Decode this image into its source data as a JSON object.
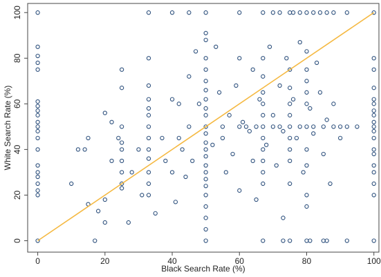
{
  "chart_data": {
    "type": "scatter",
    "xlabel": "Black Search Rate (%)",
    "ylabel": "White Search Rate (%)",
    "xlim": [
      -3,
      101.5
    ],
    "ylim": [
      -5,
      104
    ],
    "xticks": [
      0,
      20,
      40,
      60,
      80,
      100
    ],
    "yticks": [
      0,
      20,
      40,
      60,
      80,
      100
    ],
    "color": "#2c4f7c",
    "reference_line": {
      "x": [
        0,
        100
      ],
      "y": [
        0,
        100
      ],
      "color": "#f5b942"
    },
    "x": [
      0,
      0,
      0,
      0,
      0,
      0,
      0,
      0,
      0,
      0,
      0,
      0,
      0,
      0,
      0,
      0,
      0,
      0,
      0,
      0,
      0,
      100,
      100,
      100,
      100,
      100,
      100,
      100,
      100,
      100,
      100,
      100,
      100,
      100,
      100,
      100,
      100,
      100,
      100,
      100,
      33,
      40,
      45,
      50,
      60,
      67,
      70,
      72,
      75,
      76,
      78,
      80,
      82,
      84,
      86,
      88,
      92,
      17,
      50,
      67,
      73,
      75,
      80,
      81,
      85,
      86,
      92,
      50,
      50,
      50,
      50,
      50,
      50,
      50,
      50,
      50,
      50,
      50,
      50,
      50,
      50,
      50,
      50,
      50,
      50,
      50,
      50,
      50,
      50,
      33,
      33,
      33,
      33,
      33,
      33,
      33,
      33,
      33,
      33,
      33,
      33,
      67,
      67,
      67,
      67,
      67,
      67,
      67,
      67,
      67,
      67,
      67,
      25,
      25,
      25,
      25,
      25,
      25,
      25,
      25,
      25,
      75,
      75,
      75,
      75,
      75,
      75,
      75,
      75,
      75,
      80,
      80,
      80,
      80,
      80,
      80,
      80,
      80,
      80,
      80,
      55,
      60,
      62,
      65,
      70,
      72,
      78,
      82,
      85,
      88,
      90,
      10,
      12,
      14,
      15,
      15,
      18,
      20,
      20,
      20,
      22,
      22,
      24,
      27,
      28,
      30,
      31,
      35,
      37,
      38,
      40,
      40,
      41,
      42,
      42,
      43,
      44,
      45,
      45,
      46,
      47,
      48,
      52,
      53,
      54,
      55,
      56,
      57,
      58,
      59,
      60,
      60,
      61,
      63,
      64,
      64,
      65,
      66,
      68,
      69,
      70,
      71,
      72,
      73,
      73,
      74,
      76,
      77,
      78,
      79,
      81,
      82,
      83,
      84,
      85,
      86,
      87,
      88,
      90,
      92,
      95
    ],
    "y": [
      100,
      85,
      81,
      78,
      75,
      61,
      59,
      57,
      55,
      52,
      50,
      48,
      45,
      40,
      33,
      30,
      28,
      25,
      22,
      20,
      0,
      100,
      80,
      75,
      67,
      62,
      60,
      57,
      55,
      52,
      50,
      48,
      45,
      40,
      38,
      33,
      30,
      25,
      20,
      0,
      100,
      100,
      100,
      100,
      100,
      100,
      100,
      100,
      100,
      100,
      100,
      100,
      100,
      100,
      100,
      100,
      100,
      0,
      0,
      0,
      0,
      0,
      0,
      0,
      0,
      0,
      0,
      91,
      88,
      80,
      75,
      70,
      66,
      62,
      58,
      55,
      50,
      47,
      43,
      40,
      37,
      33,
      30,
      27,
      24,
      20,
      15,
      10,
      5,
      80,
      68,
      62,
      58,
      55,
      50,
      45,
      40,
      36,
      30,
      25,
      20,
      80,
      72,
      65,
      60,
      55,
      50,
      45,
      40,
      35,
      30,
      25,
      75,
      67,
      50,
      43,
      40,
      35,
      30,
      25,
      23,
      75,
      67,
      60,
      55,
      50,
      45,
      40,
      35,
      25,
      83,
      75,
      70,
      65,
      60,
      50,
      40,
      33,
      20,
      15,
      50,
      50,
      50,
      50,
      50,
      50,
      50,
      50,
      50,
      50,
      50,
      25,
      40,
      40,
      45,
      16,
      13,
      56,
      18,
      8,
      52,
      35,
      45,
      8,
      30,
      40,
      20,
      12,
      45,
      35,
      62,
      30,
      17,
      60,
      45,
      40,
      28,
      72,
      50,
      35,
      83,
      60,
      42,
      85,
      65,
      45,
      30,
      55,
      38,
      68,
      22,
      80,
      52,
      48,
      75,
      35,
      18,
      62,
      42,
      85,
      55,
      33,
      68,
      48,
      10,
      80,
      62,
      45,
      87,
      30,
      58,
      47,
      78,
      65,
      38,
      53,
      25,
      60,
      45,
      50,
      50
    ]
  }
}
